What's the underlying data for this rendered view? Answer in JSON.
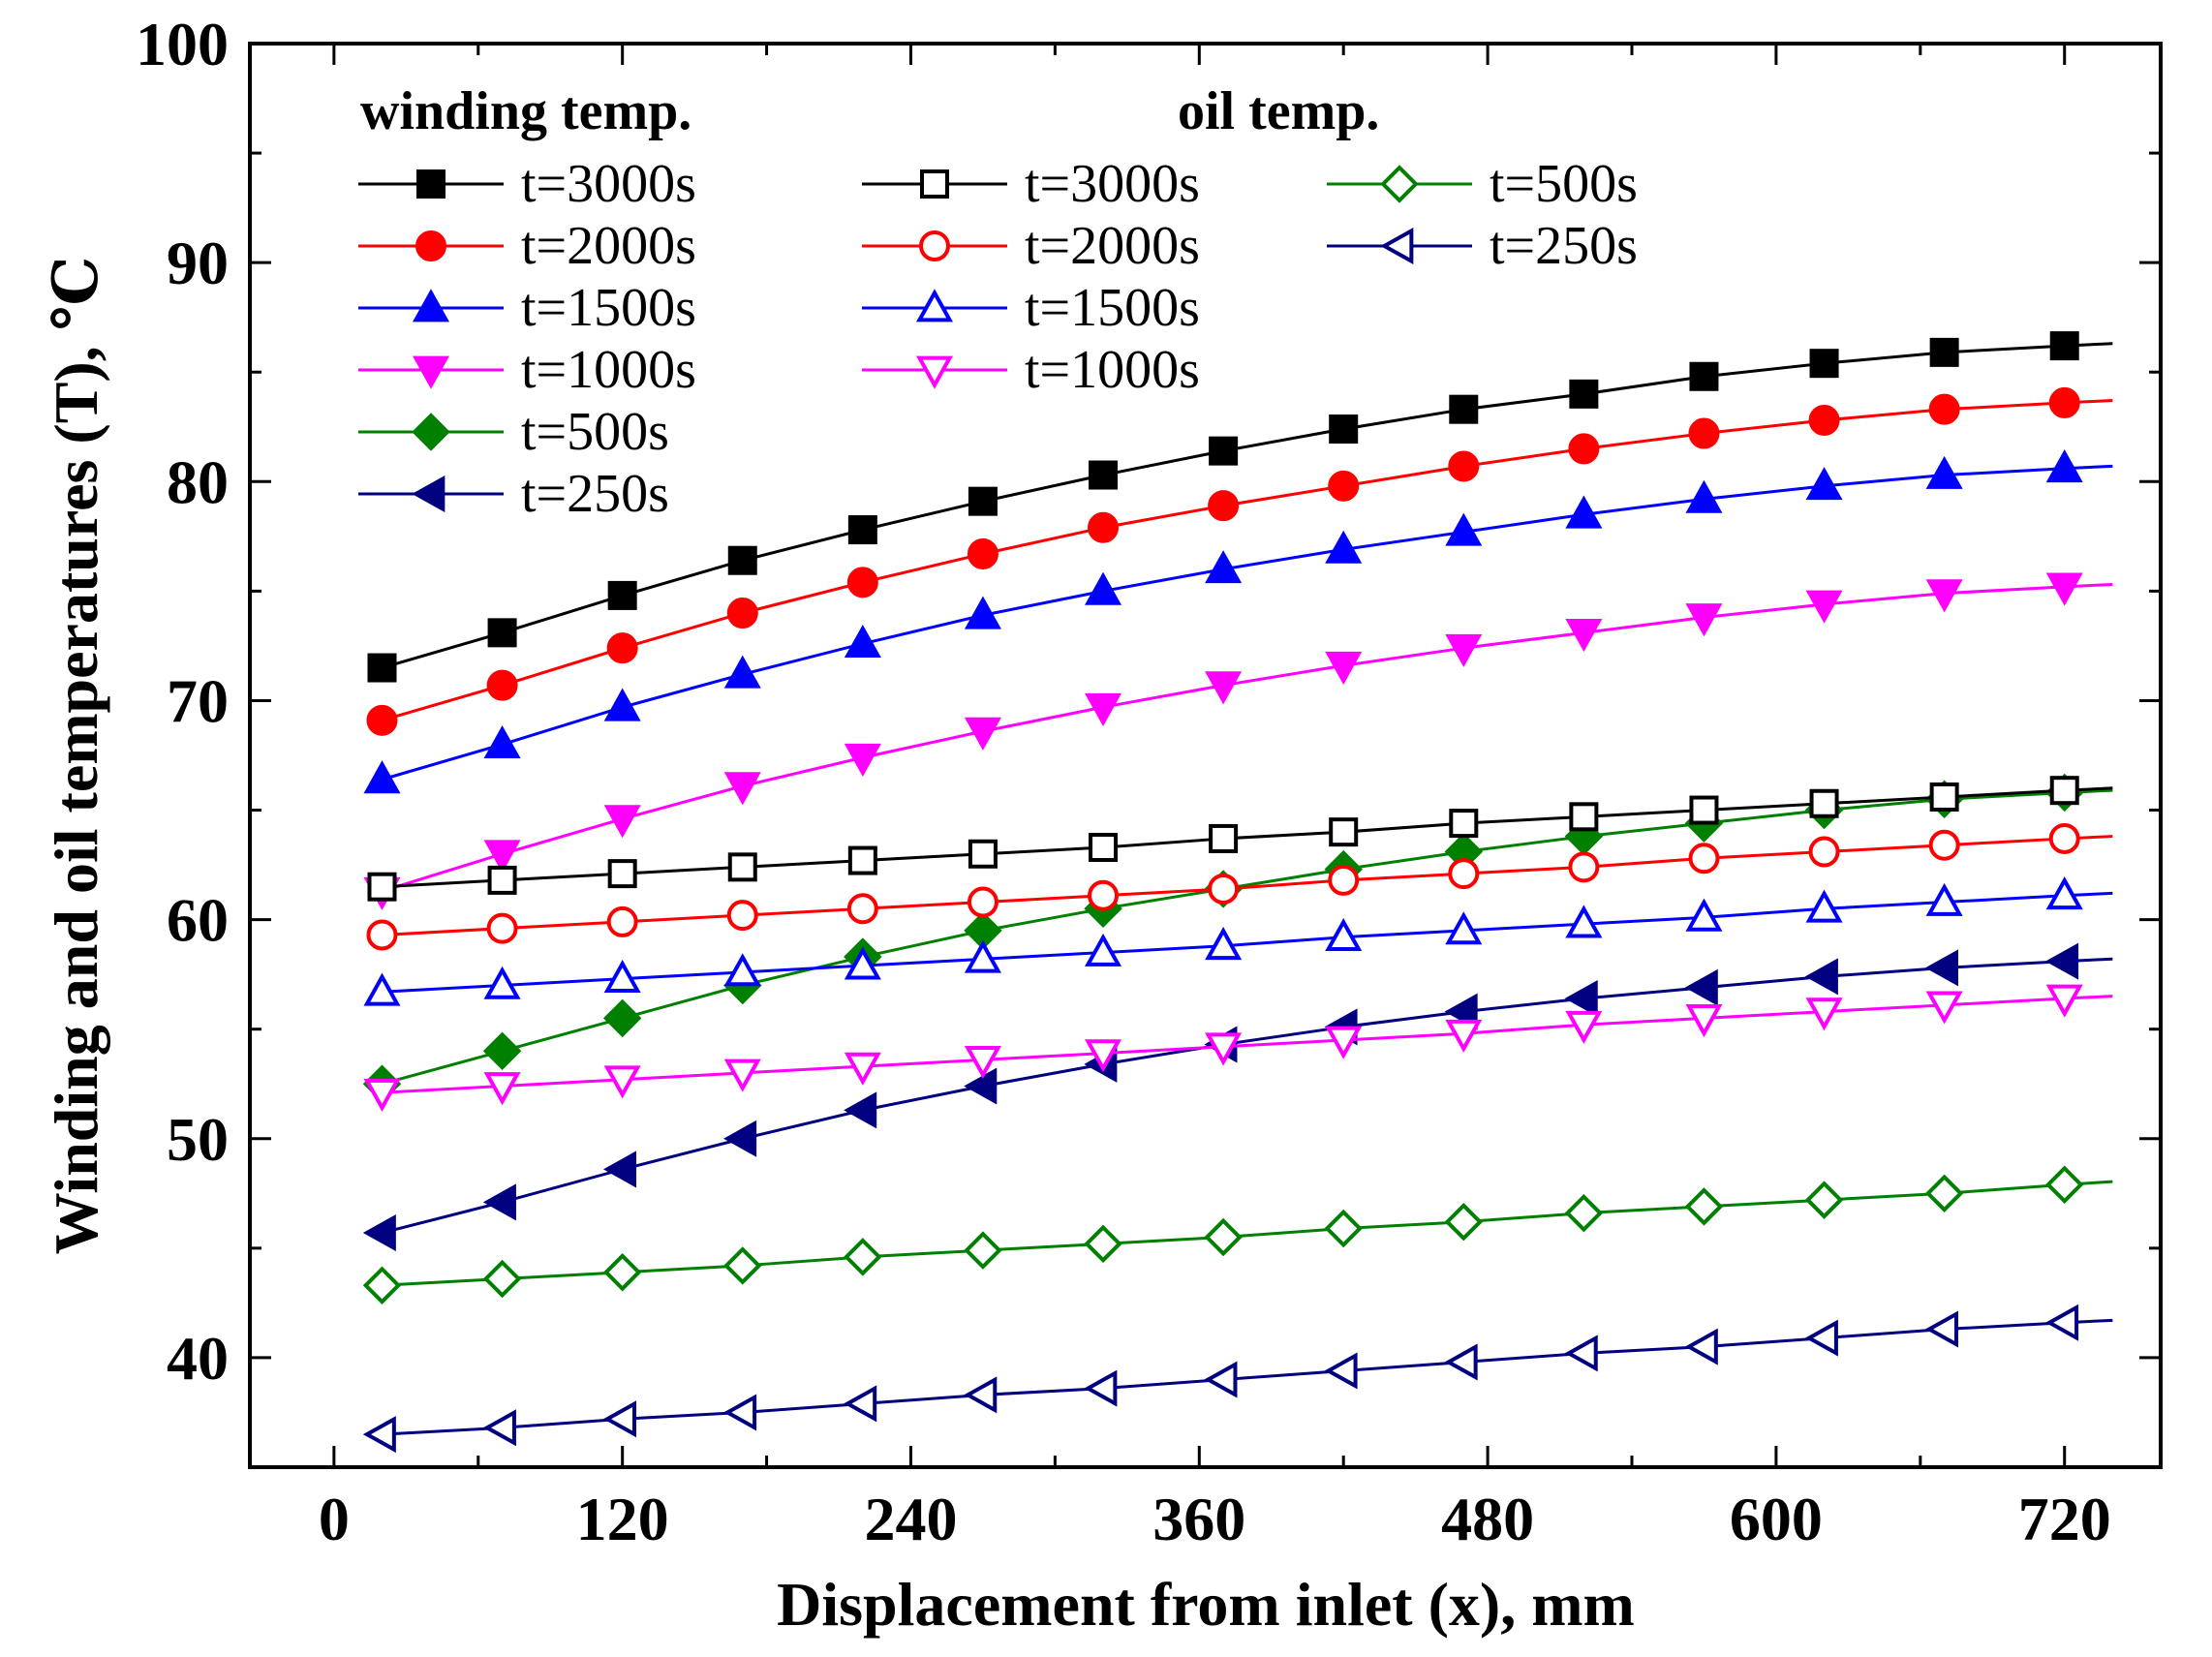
{
  "chart_data": {
    "type": "line",
    "title": "",
    "xlabel": "Displacement from inlet (x), mm",
    "ylabel": "Winding and oil temperatures (T), ℃",
    "xlim": [
      -35,
      760
    ],
    "ylim": [
      35,
      100
    ],
    "x_ticks": [
      "0",
      "120",
      "240",
      "360",
      "480",
      "600",
      "720"
    ],
    "y_ticks": [
      "40",
      "50",
      "60",
      "70",
      "80",
      "90",
      "100"
    ],
    "legend": {
      "winding_header": "winding temp.",
      "oil_header": "oil temp."
    },
    "x": [
      20,
      70,
      120,
      170,
      220,
      270,
      320,
      370,
      420,
      470,
      520,
      570,
      620,
      670,
      720
    ],
    "series": [
      {
        "name": "t=3000s",
        "group": "winding",
        "color": "#000000",
        "marker": "square",
        "filled": true,
        "values": [
          71.5,
          73.1,
          74.8,
          76.4,
          77.8,
          79.1,
          80.3,
          81.4,
          82.4,
          83.3,
          84.0,
          84.8,
          85.4,
          85.9,
          86.2
        ]
      },
      {
        "name": "t=2000s",
        "group": "winding",
        "color": "#ff0000",
        "marker": "circle",
        "filled": true,
        "values": [
          69.1,
          70.7,
          72.4,
          74.0,
          75.4,
          76.7,
          77.9,
          78.9,
          79.8,
          80.7,
          81.5,
          82.2,
          82.8,
          83.3,
          83.6
        ]
      },
      {
        "name": "t=1500s",
        "group": "winding",
        "color": "#0000ff",
        "marker": "triangle-up",
        "filled": true,
        "values": [
          66.4,
          68.0,
          69.7,
          71.2,
          72.6,
          73.9,
          75.0,
          76.0,
          76.9,
          77.7,
          78.5,
          79.2,
          79.8,
          80.3,
          80.6
        ]
      },
      {
        "name": "t=1000s",
        "group": "winding",
        "color": "#ff00ff",
        "marker": "triangle-down",
        "filled": true,
        "values": [
          61.3,
          63.0,
          64.6,
          66.1,
          67.4,
          68.6,
          69.7,
          70.7,
          71.6,
          72.4,
          73.1,
          73.8,
          74.4,
          74.9,
          75.2
        ]
      },
      {
        "name": "t=500s",
        "group": "winding",
        "color": "#008000",
        "marker": "diamond",
        "filled": true,
        "values": [
          52.5,
          54.0,
          55.5,
          57.0,
          58.3,
          59.5,
          60.5,
          61.4,
          62.3,
          63.1,
          63.8,
          64.4,
          65.0,
          65.5,
          65.8
        ]
      },
      {
        "name": "t=250s",
        "group": "winding",
        "color": "#000080",
        "marker": "triangle-left",
        "filled": true,
        "values": [
          45.7,
          47.1,
          48.6,
          50.0,
          51.3,
          52.4,
          53.4,
          54.3,
          55.1,
          55.8,
          56.4,
          56.9,
          57.4,
          57.8,
          58.1
        ]
      },
      {
        "name": "t=3000s",
        "group": "oil",
        "color": "#000000",
        "marker": "square",
        "filled": false,
        "values": [
          61.5,
          61.8,
          62.1,
          62.4,
          62.7,
          63.0,
          63.3,
          63.7,
          64.0,
          64.4,
          64.7,
          65.0,
          65.3,
          65.6,
          65.9
        ]
      },
      {
        "name": "t=2000s",
        "group": "oil",
        "color": "#ff0000",
        "marker": "circle",
        "filled": false,
        "values": [
          59.3,
          59.6,
          59.9,
          60.2,
          60.5,
          60.8,
          61.1,
          61.4,
          61.8,
          62.1,
          62.4,
          62.8,
          63.1,
          63.4,
          63.7
        ]
      },
      {
        "name": "t=1500s",
        "group": "oil",
        "color": "#0000ff",
        "marker": "triangle-up",
        "filled": false,
        "values": [
          56.7,
          57.0,
          57.3,
          57.6,
          57.9,
          58.2,
          58.5,
          58.8,
          59.2,
          59.5,
          59.8,
          60.1,
          60.5,
          60.8,
          61.1
        ]
      },
      {
        "name": "t=1000s",
        "group": "oil",
        "color": "#ff00ff",
        "marker": "triangle-down",
        "filled": false,
        "values": [
          52.1,
          52.4,
          52.7,
          53.0,
          53.3,
          53.6,
          53.9,
          54.2,
          54.5,
          54.8,
          55.2,
          55.5,
          55.8,
          56.1,
          56.4
        ]
      },
      {
        "name": "t=500s",
        "group": "oil",
        "color": "#008000",
        "marker": "diamond",
        "filled": false,
        "values": [
          43.3,
          43.6,
          43.9,
          44.2,
          44.6,
          44.9,
          45.2,
          45.5,
          45.9,
          46.2,
          46.6,
          46.9,
          47.2,
          47.5,
          47.9
        ]
      },
      {
        "name": "t=250s",
        "group": "oil",
        "color": "#000080",
        "marker": "triangle-left",
        "filled": false,
        "values": [
          36.5,
          36.8,
          37.2,
          37.5,
          37.9,
          38.3,
          38.6,
          39.0,
          39.4,
          39.8,
          40.2,
          40.5,
          40.9,
          41.3,
          41.6
        ]
      }
    ]
  }
}
